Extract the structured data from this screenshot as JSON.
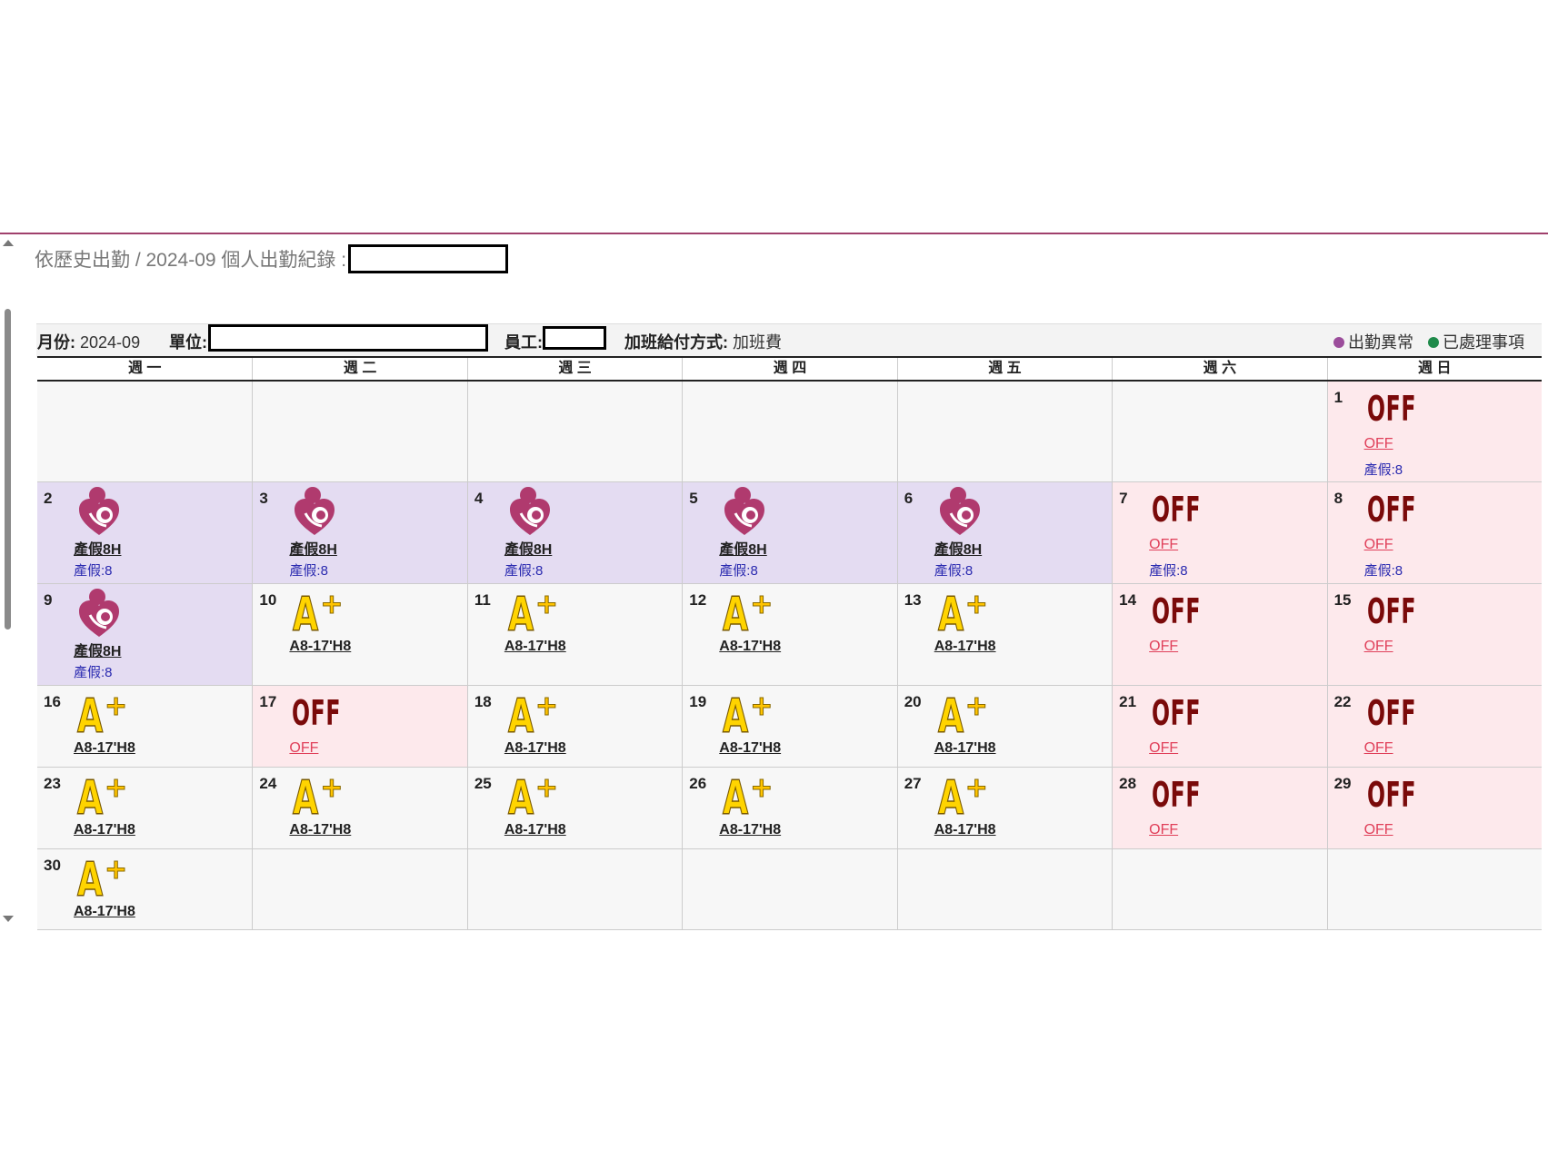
{
  "breadcrumb": {
    "text": "依歷史出勤 / 2024-09 個人出勤紀錄 :"
  },
  "info": {
    "month_label": "月份:",
    "month_value": "2024-09",
    "unit_label": "單位:",
    "employee_label": "員工:",
    "overtime_label": "加班給付方式:",
    "overtime_value": "加班費"
  },
  "legend": [
    {
      "label": "出勤異常",
      "color": "#9b4d9b"
    },
    {
      "label": "已處理事項",
      "color": "#1e8a4a"
    }
  ],
  "weekdays": [
    "週 一",
    "週 二",
    "週 三",
    "週 四",
    "週 五",
    "週 六",
    "週 日"
  ],
  "icons": {
    "leave": "breastfeeding-mother-icon",
    "aplus": "a-plus-shift-icon",
    "off": "off-icon"
  },
  "off_icon_text": "OFF",
  "aplus_text": {
    "a": "A",
    "plus": "+"
  },
  "weeks": [
    [
      null,
      null,
      null,
      null,
      null,
      null,
      {
        "day": "1",
        "type": "off",
        "label": "OFF",
        "note": "產假:8"
      }
    ],
    [
      {
        "day": "2",
        "type": "leave",
        "label": "產假8H",
        "note": "產假:8"
      },
      {
        "day": "3",
        "type": "leave",
        "label": "產假8H",
        "note": "產假:8"
      },
      {
        "day": "4",
        "type": "leave",
        "label": "產假8H",
        "note": "產假:8"
      },
      {
        "day": "5",
        "type": "leave",
        "label": "產假8H",
        "note": "產假:8"
      },
      {
        "day": "6",
        "type": "leave",
        "label": "產假8H",
        "note": "產假:8"
      },
      {
        "day": "7",
        "type": "off",
        "label": "OFF",
        "note": "產假:8"
      },
      {
        "day": "8",
        "type": "off",
        "label": "OFF",
        "note": "產假:8"
      }
    ],
    [
      {
        "day": "9",
        "type": "leave",
        "label": "產假8H",
        "note": "產假:8"
      },
      {
        "day": "10",
        "type": "work",
        "label": "A8-17'H8"
      },
      {
        "day": "11",
        "type": "work",
        "label": "A8-17'H8"
      },
      {
        "day": "12",
        "type": "work",
        "label": "A8-17'H8"
      },
      {
        "day": "13",
        "type": "work",
        "label": "A8-17'H8"
      },
      {
        "day": "14",
        "type": "off",
        "label": "OFF"
      },
      {
        "day": "15",
        "type": "off",
        "label": "OFF"
      }
    ],
    [
      {
        "day": "16",
        "type": "work",
        "label": "A8-17'H8"
      },
      {
        "day": "17",
        "type": "off",
        "label": "OFF"
      },
      {
        "day": "18",
        "type": "work",
        "label": "A8-17'H8"
      },
      {
        "day": "19",
        "type": "work",
        "label": "A8-17'H8"
      },
      {
        "day": "20",
        "type": "work",
        "label": "A8-17'H8"
      },
      {
        "day": "21",
        "type": "off",
        "label": "OFF"
      },
      {
        "day": "22",
        "type": "off",
        "label": "OFF"
      }
    ],
    [
      {
        "day": "23",
        "type": "work",
        "label": "A8-17'H8"
      },
      {
        "day": "24",
        "type": "work",
        "label": "A8-17'H8"
      },
      {
        "day": "25",
        "type": "work",
        "label": "A8-17'H8"
      },
      {
        "day": "26",
        "type": "work",
        "label": "A8-17'H8"
      },
      {
        "day": "27",
        "type": "work",
        "label": "A8-17'H8"
      },
      {
        "day": "28",
        "type": "off",
        "label": "OFF"
      },
      {
        "day": "29",
        "type": "off",
        "label": "OFF"
      }
    ],
    [
      {
        "day": "30",
        "type": "work",
        "label": "A8-17'H8"
      },
      null,
      null,
      null,
      null,
      null,
      null
    ]
  ]
}
